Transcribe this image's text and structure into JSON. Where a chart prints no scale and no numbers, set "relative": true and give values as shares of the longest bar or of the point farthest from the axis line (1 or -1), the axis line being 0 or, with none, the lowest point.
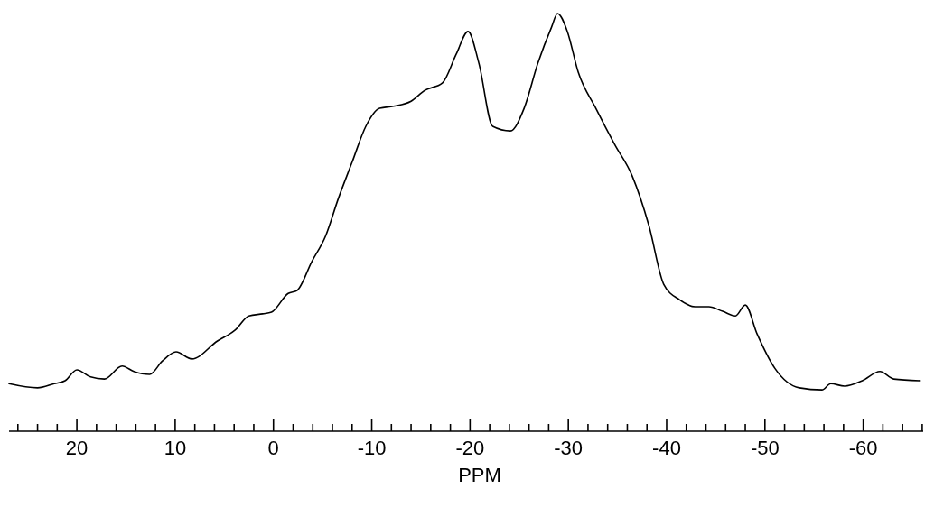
{
  "chart_data": {
    "type": "line",
    "xlabel": "PPM",
    "relative": true,
    "grid": false,
    "line_style": "solid",
    "xlim": [
      26.9,
      -66.1
    ],
    "xticks": [
      {
        "value": 26,
        "label": null
      },
      {
        "value": 24,
        "label": null
      },
      {
        "value": 22,
        "label": null
      },
      20,
      {
        "value": 18,
        "label": null
      },
      {
        "value": 16,
        "label": null
      },
      {
        "value": 14,
        "label": null
      },
      {
        "value": 12,
        "label": null
      },
      10,
      {
        "value": 8,
        "label": null
      },
      {
        "value": 6,
        "label": null
      },
      {
        "value": 4,
        "label": null
      },
      {
        "value": 2,
        "label": null
      },
      0,
      {
        "value": -2,
        "label": null
      },
      {
        "value": -4,
        "label": null
      },
      {
        "value": -6,
        "label": null
      },
      {
        "value": -8,
        "label": null
      },
      -10,
      {
        "value": -12,
        "label": null
      },
      {
        "value": -14,
        "label": null
      },
      {
        "value": -16,
        "label": null
      },
      {
        "value": -18,
        "label": null
      },
      -20,
      {
        "value": -22,
        "label": null
      },
      {
        "value": -24,
        "label": null
      },
      {
        "value": -26,
        "label": null
      },
      {
        "value": -28,
        "label": null
      },
      -30,
      {
        "value": -32,
        "label": null
      },
      {
        "value": -34,
        "label": null
      },
      {
        "value": -36,
        "label": null
      },
      {
        "value": -38,
        "label": null
      },
      -40,
      {
        "value": -42,
        "label": null
      },
      {
        "value": -44,
        "label": null
      },
      {
        "value": -46,
        "label": null
      },
      {
        "value": -48,
        "label": null
      },
      -50,
      {
        "value": -52,
        "label": null
      },
      {
        "value": -54,
        "label": null
      },
      {
        "value": -56,
        "label": null
      },
      {
        "value": -58,
        "label": null
      },
      -60,
      {
        "value": -62,
        "label": null
      },
      {
        "value": -64,
        "label": null
      },
      {
        "value": -66,
        "label": null
      }
    ],
    "series": [
      {
        "color": "#000000",
        "x": [
          26.9,
          24.0,
          22.3,
          21.2,
          20.0,
          18.6,
          17.2,
          15.4,
          14.2,
          12.6,
          11.3,
          9.9,
          8.3,
          5.7,
          3.9,
          2.5,
          1.1,
          0.2,
          -1.5,
          -2.4,
          -3.9,
          -5.3,
          -6.6,
          -8.0,
          -9.4,
          -10.8,
          -12.2,
          -14.0,
          -15.4,
          -17.2,
          -18.6,
          -19.8,
          -20.9,
          -22.3,
          -24.1,
          -25.5,
          -26.9,
          -28.3,
          -28.9,
          -29.9,
          -31.0,
          -32.8,
          -34.7,
          -36.5,
          -38.2,
          -39.7,
          -41.3,
          -42.9,
          -44.3,
          -45.7,
          -47.0,
          -48.0,
          -49.2,
          -51.0,
          -53.5,
          -55.8,
          -56.7,
          -58.1,
          -59.9,
          -61.7,
          -63.1,
          -65.8
        ],
        "values": [
          0.114,
          0.104,
          0.114,
          0.121,
          0.147,
          0.13,
          0.125,
          0.156,
          0.143,
          0.136,
          0.168,
          0.19,
          0.173,
          0.216,
          0.242,
          0.276,
          0.281,
          0.285,
          0.33,
          0.337,
          0.406,
          0.467,
          0.557,
          0.644,
          0.73,
          0.773,
          0.778,
          0.79,
          0.816,
          0.834,
          0.903,
          0.957,
          0.881,
          0.73,
          0.719,
          0.773,
          0.881,
          0.968,
          1,
          0.957,
          0.86,
          0.773,
          0.687,
          0.611,
          0.492,
          0.352,
          0.315,
          0.298,
          0.298,
          0.287,
          0.276,
          0.302,
          0.233,
          0.151,
          0.104,
          0.099,
          0.114,
          0.108,
          0.121,
          0.143,
          0.125,
          0.121
        ]
      }
    ]
  }
}
